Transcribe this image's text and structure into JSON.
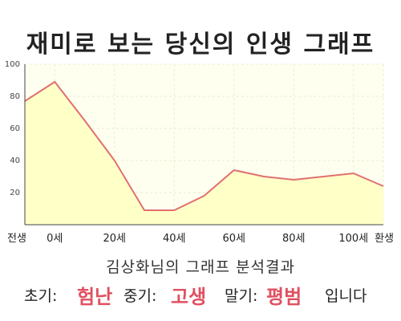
{
  "title": "재미로 보는 당신의 인생 그래프",
  "colors": {
    "line": "#e07070",
    "fill": "#ffffc8",
    "plot_bg": "#fffff0",
    "grid": "#eeeecc",
    "axis": "#444444",
    "highlight": "#e05060"
  },
  "chart_data": {
    "type": "area",
    "title": "재미로 보는 당신의 인생 그래프",
    "x": [
      -10,
      0,
      10,
      20,
      30,
      40,
      50,
      60,
      70,
      80,
      90,
      100,
      110
    ],
    "values": [
      77,
      89,
      65,
      40,
      9,
      9,
      18,
      34,
      30,
      28,
      30,
      32,
      24
    ],
    "xlim": [
      -10,
      110
    ],
    "ylim": [
      0,
      100
    ],
    "y_ticks": [
      20,
      40,
      60,
      80,
      100
    ],
    "x_ticks": [
      {
        "x": -10,
        "label": "전생"
      },
      {
        "x": 0,
        "label": "0세"
      },
      {
        "x": 20,
        "label": "20세"
      },
      {
        "x": 40,
        "label": "40세"
      },
      {
        "x": 60,
        "label": "60세"
      },
      {
        "x": 80,
        "label": "80세"
      },
      {
        "x": 100,
        "label": "100세"
      },
      {
        "x": 110,
        "label": "환생"
      }
    ],
    "grid": true,
    "legend": "none"
  },
  "result": {
    "heading": "김상화님의 그래프 분석결과",
    "early_label": "초기:",
    "early_value": "험난",
    "mid_label": "중기:",
    "mid_value": "고생",
    "late_label": "말기:",
    "late_value": "평범",
    "suffix": "입니다"
  }
}
